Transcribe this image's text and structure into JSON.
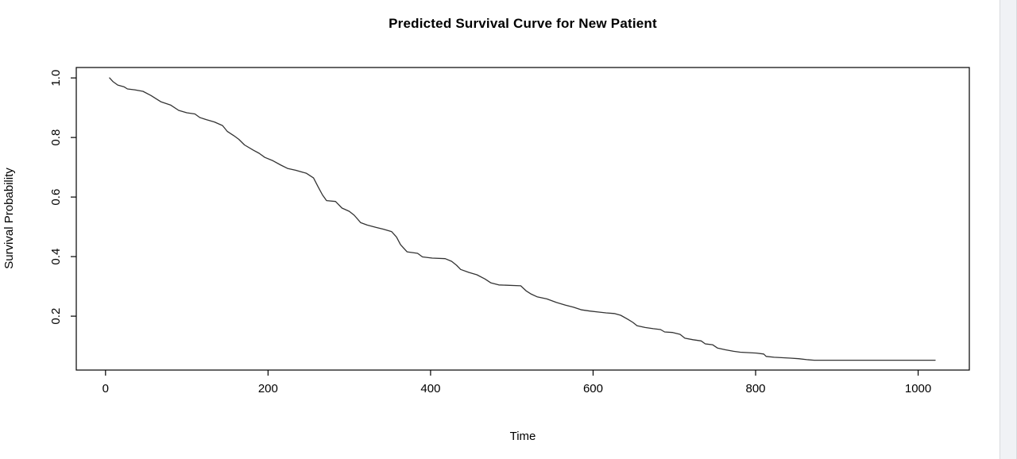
{
  "theme": {
    "page_bg": "#ffffff",
    "axis_color": "#000000",
    "curve_color": "#333333",
    "scroll_track_bg": "#f0f2f5",
    "scroll_track_border": "#d8dadd"
  },
  "scrollbar": {
    "visible": true
  },
  "chart_data": {
    "type": "line",
    "subtype": "survival-step-curve",
    "title": "Predicted Survival Curve for New Patient",
    "xlabel": "Time",
    "ylabel": "Survival Probability",
    "x_ticks": [
      0,
      200,
      400,
      600,
      800,
      1000
    ],
    "y_ticks": [
      0.2,
      0.4,
      0.6,
      0.8,
      1.0
    ],
    "x_range": [
      -36,
      1063
    ],
    "y_range": [
      0.019,
      1.035
    ],
    "grid": false,
    "legend": "none",
    "box": true,
    "series": [
      {
        "name": "predicted-survival",
        "color": "#333333",
        "points": [
          [
            5,
            1.0
          ],
          [
            9,
            0.988
          ],
          [
            15,
            0.976
          ],
          [
            23,
            0.97
          ],
          [
            27,
            0.963
          ],
          [
            36,
            0.96
          ],
          [
            46,
            0.955
          ],
          [
            56,
            0.941
          ],
          [
            61,
            0.932
          ],
          [
            68,
            0.92
          ],
          [
            80,
            0.909
          ],
          [
            90,
            0.891
          ],
          [
            100,
            0.883
          ],
          [
            110,
            0.879
          ],
          [
            116,
            0.867
          ],
          [
            124,
            0.86
          ],
          [
            134,
            0.852
          ],
          [
            144,
            0.84
          ],
          [
            150,
            0.82
          ],
          [
            158,
            0.806
          ],
          [
            164,
            0.794
          ],
          [
            171,
            0.775
          ],
          [
            182,
            0.757
          ],
          [
            189,
            0.747
          ],
          [
            196,
            0.733
          ],
          [
            206,
            0.722
          ],
          [
            216,
            0.707
          ],
          [
            224,
            0.696
          ],
          [
            234,
            0.69
          ],
          [
            247,
            0.68
          ],
          [
            256,
            0.664
          ],
          [
            262,
            0.632
          ],
          [
            267,
            0.607
          ],
          [
            272,
            0.588
          ],
          [
            283,
            0.585
          ],
          [
            291,
            0.563
          ],
          [
            300,
            0.552
          ],
          [
            306,
            0.539
          ],
          [
            314,
            0.514
          ],
          [
            322,
            0.506
          ],
          [
            333,
            0.498
          ],
          [
            342,
            0.492
          ],
          [
            352,
            0.484
          ],
          [
            358,
            0.466
          ],
          [
            363,
            0.44
          ],
          [
            371,
            0.416
          ],
          [
            384,
            0.411
          ],
          [
            390,
            0.399
          ],
          [
            402,
            0.395
          ],
          [
            418,
            0.393
          ],
          [
            426,
            0.384
          ],
          [
            432,
            0.371
          ],
          [
            437,
            0.357
          ],
          [
            447,
            0.347
          ],
          [
            457,
            0.339
          ],
          [
            467,
            0.325
          ],
          [
            474,
            0.312
          ],
          [
            484,
            0.305
          ],
          [
            511,
            0.302
          ],
          [
            518,
            0.284
          ],
          [
            524,
            0.274
          ],
          [
            531,
            0.265
          ],
          [
            543,
            0.258
          ],
          [
            555,
            0.246
          ],
          [
            566,
            0.237
          ],
          [
            576,
            0.23
          ],
          [
            586,
            0.221
          ],
          [
            596,
            0.217
          ],
          [
            606,
            0.214
          ],
          [
            616,
            0.211
          ],
          [
            626,
            0.209
          ],
          [
            634,
            0.203
          ],
          [
            643,
            0.189
          ],
          [
            649,
            0.179
          ],
          [
            654,
            0.168
          ],
          [
            664,
            0.162
          ],
          [
            674,
            0.158
          ],
          [
            683,
            0.155
          ],
          [
            688,
            0.147
          ],
          [
            698,
            0.145
          ],
          [
            707,
            0.139
          ],
          [
            713,
            0.126
          ],
          [
            723,
            0.121
          ],
          [
            733,
            0.117
          ],
          [
            738,
            0.107
          ],
          [
            747,
            0.104
          ],
          [
            753,
            0.093
          ],
          [
            763,
            0.087
          ],
          [
            773,
            0.082
          ],
          [
            781,
            0.079
          ],
          [
            801,
            0.076
          ],
          [
            810,
            0.073
          ],
          [
            813,
            0.065
          ],
          [
            823,
            0.062
          ],
          [
            843,
            0.059
          ],
          [
            853,
            0.057
          ],
          [
            863,
            0.054
          ],
          [
            872,
            0.052
          ],
          [
            1021,
            0.052
          ]
        ]
      }
    ]
  }
}
